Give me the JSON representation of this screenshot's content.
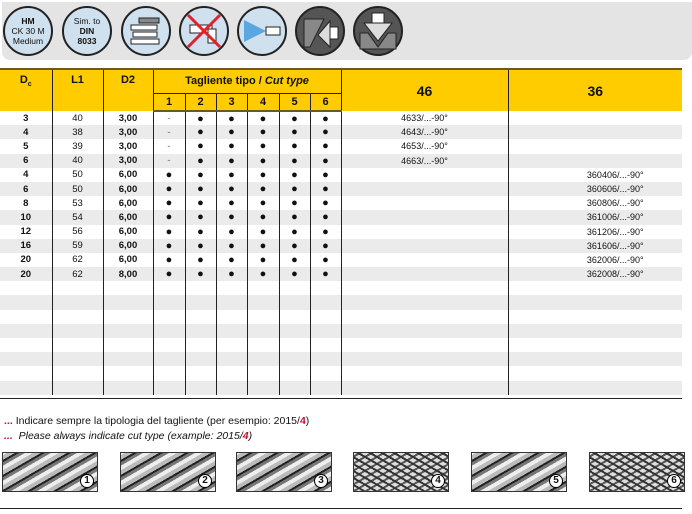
{
  "icons": {
    "material": [
      "HM",
      "CK 30 M",
      "Medium"
    ],
    "standard": [
      "Sim. to",
      "DIN",
      "8033"
    ],
    "names": [
      "shank-types-icon",
      "no-coolant-icon",
      "air-spray-icon",
      "chamfer-icon",
      "countersink-icon"
    ]
  },
  "header": {
    "dc": "D",
    "dc_sub": "c",
    "l1": "L1",
    "d2": "D2",
    "cut_type_it": "Tagliente tipo / ",
    "cut_type_en": "Cut type",
    "cut_cols": [
      "1",
      "2",
      "3",
      "4",
      "5",
      "6"
    ],
    "col46": "46",
    "col36": "36"
  },
  "rows": [
    {
      "dc": "3",
      "l1": "40",
      "d2": "3,00",
      "cuts": [
        "-",
        "●",
        "●",
        "●",
        "●",
        "●"
      ],
      "c46": "4633/...-90°",
      "c36": ""
    },
    {
      "dc": "4",
      "l1": "38",
      "d2": "3,00",
      "cuts": [
        "-",
        "●",
        "●",
        "●",
        "●",
        "●"
      ],
      "c46": "4643/...-90°",
      "c36": ""
    },
    {
      "dc": "5",
      "l1": "39",
      "d2": "3,00",
      "cuts": [
        "-",
        "●",
        "●",
        "●",
        "●",
        "●"
      ],
      "c46": "4653/...-90°",
      "c36": ""
    },
    {
      "dc": "6",
      "l1": "40",
      "d2": "3,00",
      "cuts": [
        "-",
        "●",
        "●",
        "●",
        "●",
        "●"
      ],
      "c46": "4663/...-90°",
      "c36": ""
    },
    {
      "dc": "4",
      "l1": "50",
      "d2": "6,00",
      "cuts": [
        "●",
        "●",
        "●",
        "●",
        "●",
        "●"
      ],
      "c46": "",
      "c36": "360406/...-90°"
    },
    {
      "dc": "6",
      "l1": "50",
      "d2": "6,00",
      "cuts": [
        "●",
        "●",
        "●",
        "●",
        "●",
        "●"
      ],
      "c46": "",
      "c36": "360606/...-90°"
    },
    {
      "dc": "8",
      "l1": "53",
      "d2": "6,00",
      "cuts": [
        "●",
        "●",
        "●",
        "●",
        "●",
        "●"
      ],
      "c46": "",
      "c36": "360806/...-90°"
    },
    {
      "dc": "10",
      "l1": "54",
      "d2": "6,00",
      "cuts": [
        "●",
        "●",
        "●",
        "●",
        "●",
        "●"
      ],
      "c46": "",
      "c36": "361006/...-90°"
    },
    {
      "dc": "12",
      "l1": "56",
      "d2": "6,00",
      "cuts": [
        "●",
        "●",
        "●",
        "●",
        "●",
        "●"
      ],
      "c46": "",
      "c36": "361206/...-90°"
    },
    {
      "dc": "16",
      "l1": "59",
      "d2": "6,00",
      "cuts": [
        "●",
        "●",
        "●",
        "●",
        "●",
        "●"
      ],
      "c46": "",
      "c36": "361606/...-90°"
    },
    {
      "dc": "20",
      "l1": "62",
      "d2": "6,00",
      "cuts": [
        "●",
        "●",
        "●",
        "●",
        "●",
        "●"
      ],
      "c46": "",
      "c36": "362006/...-90°"
    },
    {
      "dc": "20",
      "l1": "62",
      "d2": "8,00",
      "cuts": [
        "●",
        "●",
        "●",
        "●",
        "●",
        "●"
      ],
      "c46": "",
      "c36": "362008/...-90°"
    }
  ],
  "notes": {
    "dots": "...",
    "it": "Indicare sempre la tipologia del tagliente (per esempio: 2015/",
    "en": "Please always indicate cut type (example: 2015/",
    "example_num": "4",
    "close": ")"
  },
  "cut_samples": [
    "1",
    "2",
    "3",
    "4",
    "5",
    "6"
  ],
  "colors": {
    "header": "#ffcc00",
    "stripe": "#ebebeb",
    "accent": "#c8102e"
  }
}
